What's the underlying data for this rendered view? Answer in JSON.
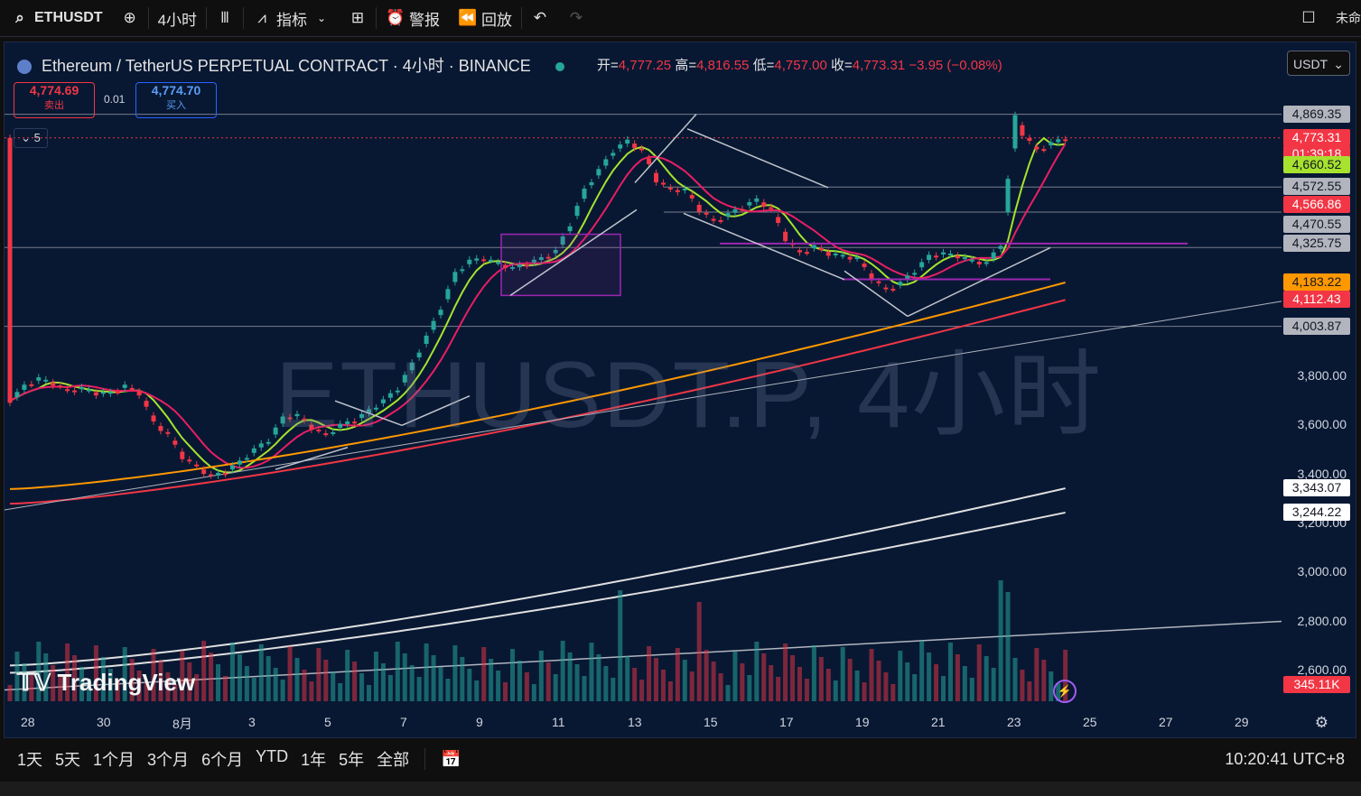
{
  "toolbar": {
    "symbol": "ETHUSDT",
    "interval": "4小时",
    "indicators": "指标",
    "alerts": "警报",
    "replay": "回放",
    "account": "未命"
  },
  "legend": {
    "title": "Ethereum / TetherUS PERPETUAL CONTRACT · 4小时 · BINANCE",
    "open_label": "开=",
    "open": "4,777.25",
    "high_label": "高=",
    "high": "4,816.55",
    "low_label": "低=",
    "low": "4,757.00",
    "close_label": "收=",
    "close": "4,773.31",
    "change": "−3.95 (−0.08%)"
  },
  "order": {
    "sell_price": "4,774.69",
    "sell_label": "卖出",
    "spread": "0.01",
    "buy_price": "4,774.70",
    "buy_label": "买入",
    "collapse_count": "5"
  },
  "currency": "USDT",
  "watermark": "ETHUSDT.P, 4小时",
  "brand": "TradingView",
  "y_axis_ticks": [
    "3,800.00",
    "3,600.00",
    "3,400.00",
    "3,200.00",
    "3,000.00",
    "2,800.00",
    "2,600.00"
  ],
  "price_labels": [
    {
      "text": "4,869.35",
      "bg": "#b2b5be",
      "fg": "#131722",
      "val": 4869.35
    },
    {
      "text": "4,773.31",
      "bg": "#f23645",
      "fg": "#ffffff",
      "val": 4773.31
    },
    {
      "text": "01:39:18",
      "bg": "#f23645",
      "fg": "#ffffff",
      "val": 4706
    },
    {
      "text": "4,660.52",
      "bg": "#a6e22e",
      "fg": "#131722",
      "val": 4660.52
    },
    {
      "text": "4,572.55",
      "bg": "#b2b5be",
      "fg": "#131722",
      "val": 4572.55
    },
    {
      "text": "4,566.86",
      "bg": "#f23645",
      "fg": "#ffffff",
      "val": 4499
    },
    {
      "text": "4,470.55",
      "bg": "#b2b5be",
      "fg": "#131722",
      "val": 4420
    },
    {
      "text": "4,325.75",
      "bg": "#b2b5be",
      "fg": "#131722",
      "val": 4342
    },
    {
      "text": "4,183.22",
      "bg": "#ff9800",
      "fg": "#131722",
      "val": 4183.22
    },
    {
      "text": "4,112.43",
      "bg": "#f23645",
      "fg": "#ffffff",
      "val": 4112.43
    },
    {
      "text": "4,003.87",
      "bg": "#b2b5be",
      "fg": "#131722",
      "val": 4003.87
    },
    {
      "text": "3,343.07",
      "bg": "#ffffff",
      "fg": "#131722",
      "val": 3343.07
    },
    {
      "text": "3,244.22",
      "bg": "#ffffff",
      "fg": "#131722",
      "val": 3244.22
    },
    {
      "text": "345.11K",
      "bg": "#f23645",
      "fg": "#ffffff",
      "val": 2540
    }
  ],
  "x_axis_ticks": [
    "28",
    "30",
    "8月",
    "3",
    "5",
    "7",
    "9",
    "11",
    "13",
    "15",
    "17",
    "19",
    "21",
    "23",
    "25",
    "27",
    "29"
  ],
  "timeframes": [
    "1天",
    "5天",
    "1个月",
    "3个月",
    "6个月",
    "YTD",
    "1年",
    "5年",
    "全部"
  ],
  "clock": "10:20:41 UTC+8",
  "chart_data": {
    "type": "candlestick",
    "symbol": "ETHUSDT.P",
    "interval": "4小时",
    "ohlc_last": {
      "open": 4777.25,
      "high": 4816.55,
      "low": 4757.0,
      "close": 4773.31
    },
    "price_path": [
      [
        0,
        3700
      ],
      [
        2,
        3760
      ],
      [
        4,
        3790
      ],
      [
        6,
        3770
      ],
      [
        8,
        3740
      ],
      [
        10,
        3750
      ],
      [
        12,
        3730
      ],
      [
        14,
        3730
      ],
      [
        16,
        3760
      ],
      [
        18,
        3730
      ],
      [
        20,
        3610
      ],
      [
        22,
        3560
      ],
      [
        24,
        3470
      ],
      [
        26,
        3430
      ],
      [
        28,
        3390
      ],
      [
        30,
        3410
      ],
      [
        32,
        3450
      ],
      [
        34,
        3500
      ],
      [
        36,
        3540
      ],
      [
        38,
        3630
      ],
      [
        40,
        3640
      ],
      [
        42,
        3590
      ],
      [
        44,
        3560
      ],
      [
        46,
        3600
      ],
      [
        48,
        3620
      ],
      [
        50,
        3660
      ],
      [
        52,
        3700
      ],
      [
        54,
        3750
      ],
      [
        56,
        3850
      ],
      [
        58,
        3960
      ],
      [
        60,
        4080
      ],
      [
        62,
        4220
      ],
      [
        64,
        4270
      ],
      [
        66,
        4280
      ],
      [
        68,
        4260
      ],
      [
        70,
        4240
      ],
      [
        72,
        4260
      ],
      [
        74,
        4280
      ],
      [
        76,
        4310
      ],
      [
        78,
        4420
      ],
      [
        80,
        4560
      ],
      [
        82,
        4640
      ],
      [
        84,
        4720
      ],
      [
        86,
        4760
      ],
      [
        88,
        4720
      ],
      [
        90,
        4600
      ],
      [
        92,
        4560
      ],
      [
        94,
        4560
      ],
      [
        96,
        4480
      ],
      [
        98,
        4430
      ],
      [
        100,
        4460
      ],
      [
        102,
        4490
      ],
      [
        104,
        4520
      ],
      [
        106,
        4480
      ],
      [
        108,
        4360
      ],
      [
        110,
        4300
      ],
      [
        112,
        4330
      ],
      [
        114,
        4300
      ],
      [
        116,
        4290
      ],
      [
        118,
        4280
      ],
      [
        120,
        4200
      ],
      [
        122,
        4150
      ],
      [
        124,
        4180
      ],
      [
        126,
        4230
      ],
      [
        128,
        4290
      ],
      [
        130,
        4300
      ],
      [
        132,
        4290
      ],
      [
        134,
        4270
      ],
      [
        136,
        4260
      ],
      [
        138,
        4340
      ],
      [
        139,
        4600
      ],
      [
        140,
        4860
      ],
      [
        141,
        4790
      ],
      [
        143,
        4720
      ],
      [
        145,
        4750
      ],
      [
        147,
        4773
      ]
    ],
    "moving_averages": [
      {
        "color": "#a6e22e",
        "end": 4660.52
      },
      {
        "color": "#e91e63",
        "end": 4566.86
      },
      {
        "color": "#ff9800",
        "end": 4183.22
      },
      {
        "color": "#f23645",
        "end": 4112.43
      },
      {
        "color": "#ffffff",
        "end": 3343.07
      },
      {
        "color": "#ffffff",
        "end": 3244.22
      }
    ],
    "horizontal_levels": [
      4869.35,
      4572.55,
      4470.55,
      4325.75,
      4003.87
    ],
    "volume_last": "345.11K"
  }
}
